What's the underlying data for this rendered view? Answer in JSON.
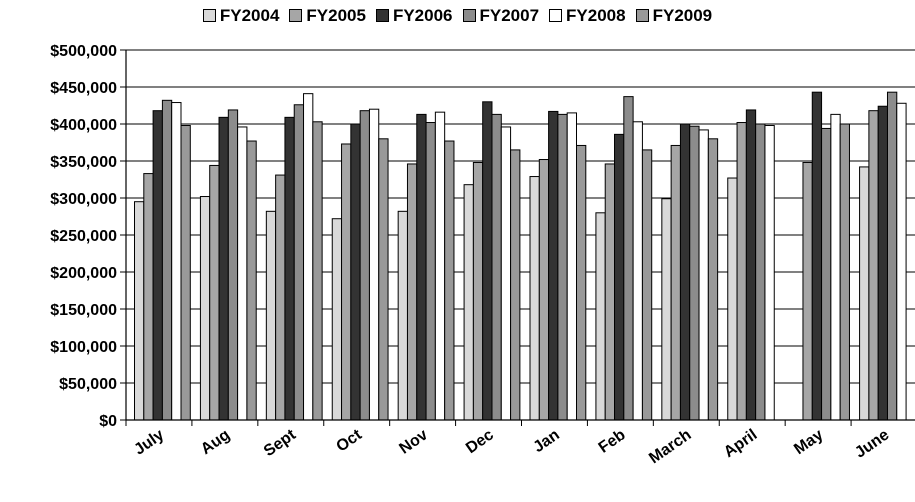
{
  "chart_data": {
    "type": "bar",
    "title": "",
    "xlabel": "",
    "ylabel": "",
    "ylim": [
      0,
      500000
    ],
    "y_tick_values": [
      0,
      50000,
      100000,
      150000,
      200000,
      250000,
      300000,
      350000,
      400000,
      450000,
      500000
    ],
    "y_tick_labels": [
      "$0",
      "$50,000",
      "$100,000",
      "$150,000",
      "$200,000",
      "$250,000",
      "$300,000",
      "$350,000",
      "$400,000",
      "$450,000",
      "$500,000"
    ],
    "grid": true,
    "legend_position": "top-center",
    "categories": [
      "July",
      "Aug",
      "Sept",
      "Oct",
      "Nov",
      "Dec",
      "Jan",
      "Feb",
      "March",
      "April",
      "May",
      "June"
    ],
    "series": [
      {
        "name": "FY2004",
        "color": "#d9d9d9",
        "values": [
          295000,
          302000,
          282000,
          272000,
          282000,
          318000,
          329000,
          280000,
          299000,
          327000,
          null,
          342000
        ]
      },
      {
        "name": "FY2005",
        "color": "#a6a6a6",
        "values": [
          333000,
          344000,
          331000,
          373000,
          346000,
          348000,
          352000,
          346000,
          371000,
          402000,
          348000,
          418000
        ]
      },
      {
        "name": "FY2006",
        "color": "#333333",
        "values": [
          418000,
          409000,
          409000,
          400000,
          413000,
          430000,
          417000,
          386000,
          400000,
          419000,
          443000,
          424000
        ]
      },
      {
        "name": "FY2007",
        "color": "#8c8c8c",
        "values": [
          432000,
          419000,
          426000,
          418000,
          402000,
          413000,
          413000,
          437000,
          397000,
          400000,
          394000,
          443000
        ]
      },
      {
        "name": "FY2008",
        "color": "#ffffff",
        "values": [
          429000,
          396000,
          441000,
          420000,
          416000,
          396000,
          415000,
          403000,
          392000,
          398000,
          413000,
          428000
        ]
      },
      {
        "name": "FY2009",
        "color": "#999999",
        "values": [
          398000,
          377000,
          403000,
          380000,
          377000,
          365000,
          371000,
          365000,
          380000,
          null,
          400000,
          null
        ]
      }
    ]
  }
}
